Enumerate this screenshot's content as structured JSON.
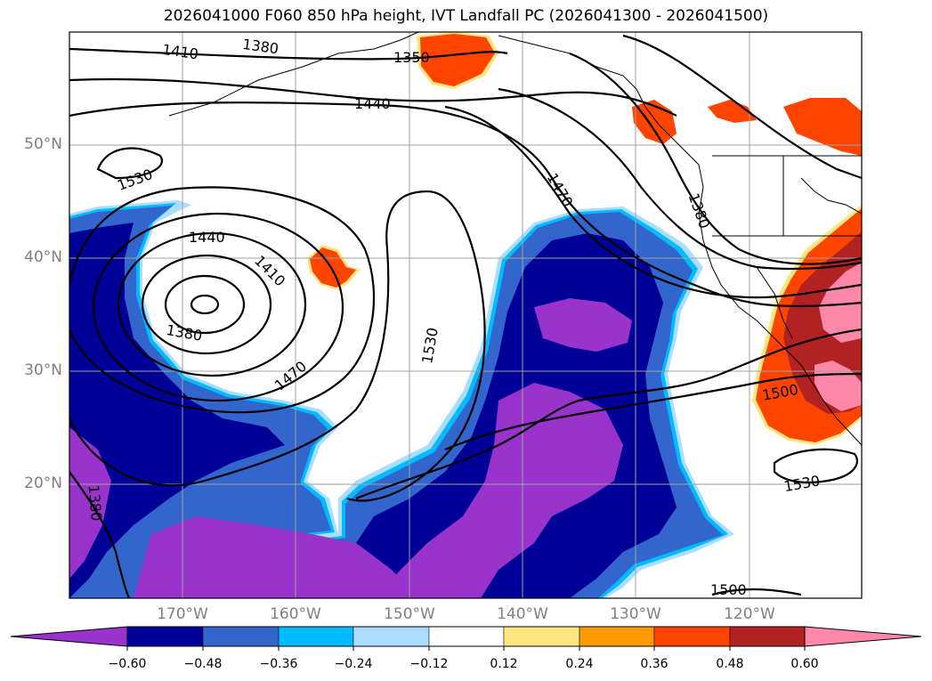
{
  "title": "2026041000 F060 850 hPa height, IVT Landfall PC (2026041300 - 2026041500)",
  "lat_labels": [
    "50°N",
    "40°N",
    "30°N",
    "20°N"
  ],
  "lon_labels": [
    "170°W",
    "160°W",
    "150°W",
    "140°W",
    "130°W",
    "120°W"
  ],
  "contour_labels": [
    "1410",
    "1380",
    "1350",
    "1440",
    "1530",
    "1470",
    "1380",
    "1440",
    "1410",
    "1380",
    "1470",
    "1530",
    "1500",
    "1530",
    "1380",
    "1500"
  ],
  "colorbar": {
    "ticks": [
      "−0.60",
      "−0.48",
      "−0.36",
      "−0.24",
      "−0.12",
      "0.12",
      "0.24",
      "0.36",
      "0.48",
      "0.60"
    ],
    "colors": [
      "#9933cc",
      "#000099",
      "#3366cc",
      "#00bbff",
      "#aaddff",
      "#ffffff",
      "#ffe680",
      "#ff9900",
      "#ff4400",
      "#b22222",
      "#ff88aa"
    ]
  },
  "map_colors": {
    "purple": "#9933cc",
    "navy": "#000099",
    "blue": "#3366cc",
    "cyan": "#00bbff",
    "lightblue": "#aaddff",
    "yellow": "#ffe680",
    "orange": "#ff9900",
    "redorange": "#ff4400",
    "darkred": "#b22222",
    "pink": "#ff88aa"
  }
}
